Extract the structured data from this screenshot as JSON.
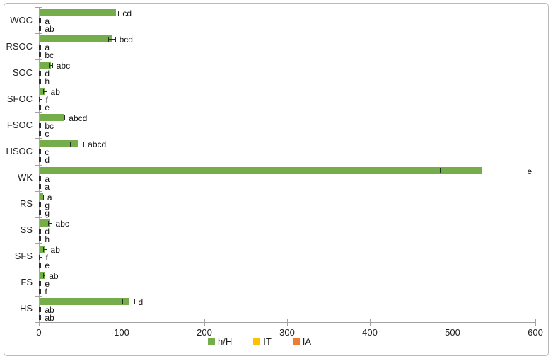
{
  "figure": {
    "background": "#ffffff",
    "border_color": "#b9b9b9"
  },
  "chart_data": {
    "type": "bar",
    "orientation": "horizontal",
    "title": "",
    "xlabel": "",
    "ylabel": "",
    "grid": false,
    "legend_position": "bottom",
    "axis_color": "#a3a3a3",
    "error_bar_color": "#2b2b2b",
    "xlim": [
      0,
      600
    ],
    "xticks": [
      "0",
      "100",
      "200",
      "300",
      "400",
      "500",
      "600"
    ],
    "xtick_values": [
      0,
      100,
      200,
      300,
      400,
      500,
      600
    ],
    "categories": [
      "WOC",
      "RSOC",
      "SOC",
      "SFOC",
      "FSOC",
      "HSOC",
      "WK",
      "RS",
      "SS",
      "SFS",
      "FS",
      "HS"
    ],
    "series": [
      {
        "name": "h/H",
        "color": "#76AD4B",
        "values": [
          92,
          88,
          14,
          7,
          29,
          46,
          535,
          4,
          13,
          7,
          6,
          108
        ],
        "errors": [
          4,
          4,
          2,
          2,
          2,
          8,
          50,
          1,
          2,
          2,
          1,
          7
        ],
        "sig_labels": [
          "cd",
          "bcd",
          "abc",
          "ab",
          "abcd",
          "abcd",
          "e",
          "a",
          "abc",
          "ab",
          "ab",
          "d"
        ]
      },
      {
        "name": "IT",
        "color": "#FFC000",
        "values": [
          1,
          1,
          1,
          1,
          1,
          1,
          1,
          1,
          1,
          1,
          1,
          1
        ],
        "errors": [
          1,
          1,
          1,
          2,
          1,
          1,
          1,
          1,
          1,
          2,
          1,
          1
        ],
        "sig_labels": [
          "a",
          "a",
          "d",
          "f",
          "bc",
          "c",
          "a",
          "g",
          "d",
          "f",
          "e",
          "ab"
        ]
      },
      {
        "name": "IA",
        "color": "#ED7D31",
        "values": [
          1,
          1,
          1,
          1,
          1,
          1,
          1,
          1,
          1,
          1,
          1,
          1
        ],
        "errors": [
          1,
          1,
          1,
          1,
          1,
          1,
          1,
          1,
          1,
          1,
          1,
          1
        ],
        "sig_labels": [
          "ab",
          "bc",
          "h",
          "e",
          "c",
          "d",
          "a",
          "g",
          "h",
          "e",
          "f",
          "ab"
        ]
      }
    ]
  }
}
